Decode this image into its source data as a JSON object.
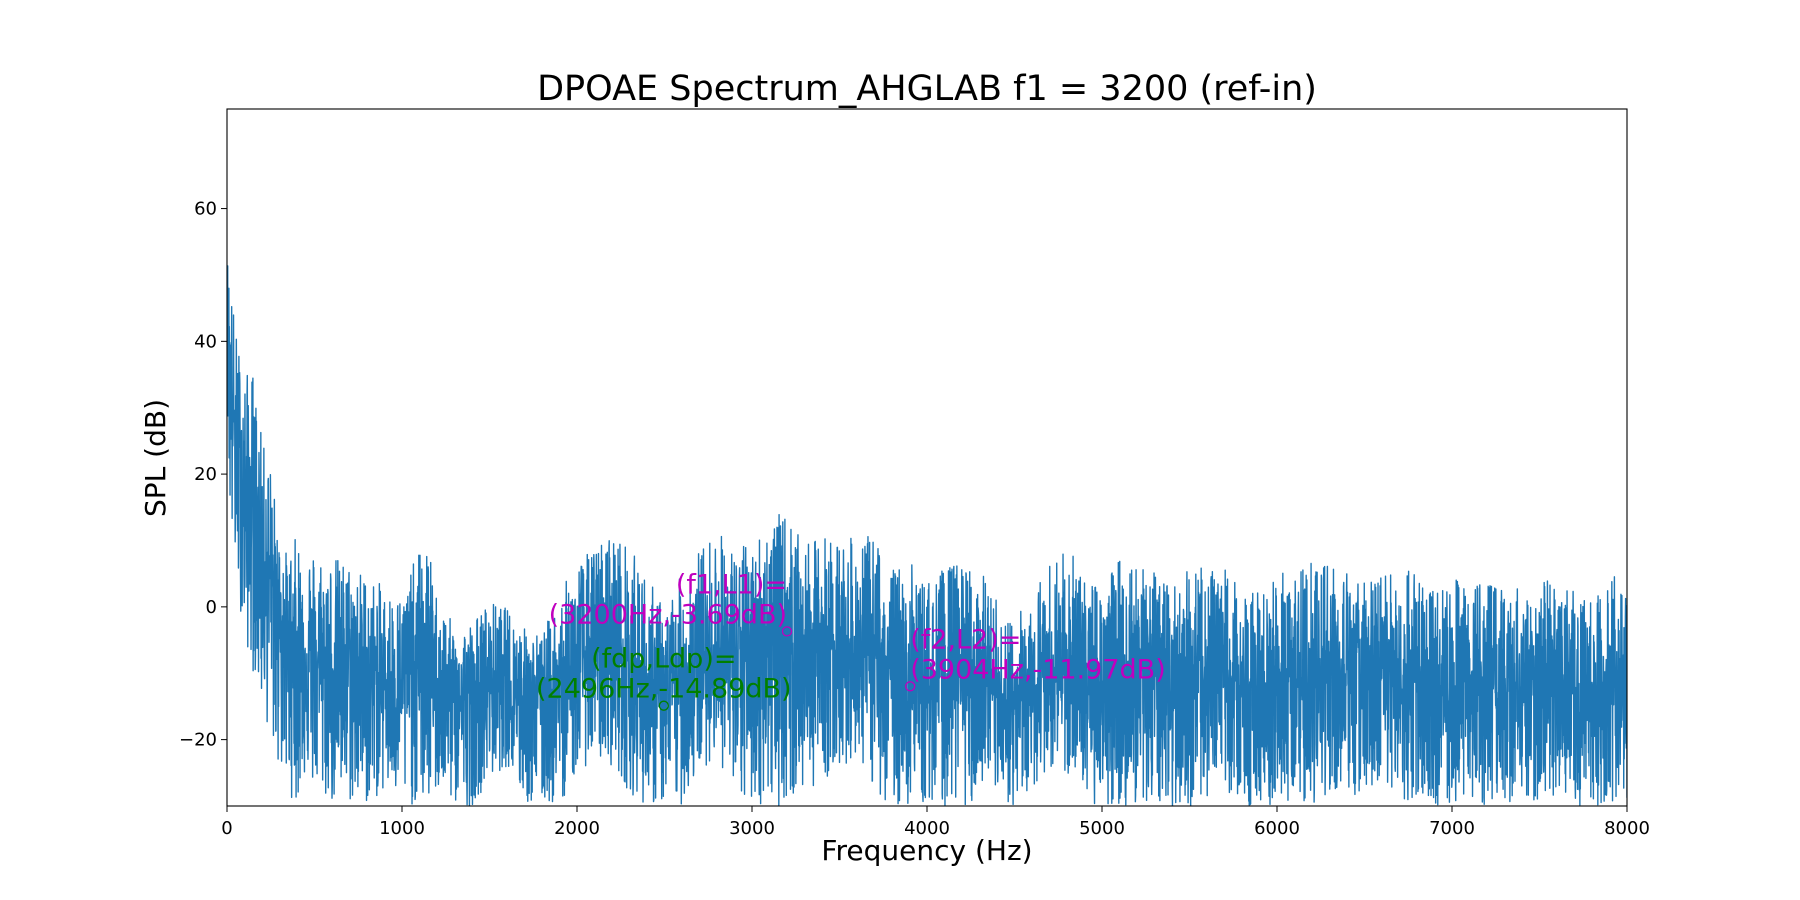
{
  "chart_data": {
    "type": "line",
    "title": "DPOAE Spectrum_AHGLAB f1 = 3200 (ref-in)",
    "xlabel": "Frequency (Hz)",
    "ylabel": "SPL (dB)",
    "xlim": [
      0,
      8000
    ],
    "ylim": [
      -30,
      75
    ],
    "xticks": [
      0,
      1000,
      2000,
      3000,
      4000,
      5000,
      6000,
      7000,
      8000
    ],
    "xtick_labels": [
      "0",
      "1000",
      "2000",
      "3000",
      "4000",
      "5000",
      "6000",
      "7000",
      "8000"
    ],
    "yticks": [
      -20,
      0,
      20,
      40,
      60
    ],
    "ytick_labels": [
      "−20",
      "0",
      "20",
      "40",
      "60"
    ],
    "grid": false,
    "series_color": "#1f77b4",
    "envelope": {
      "x": [
        0,
        20,
        50,
        100,
        150,
        200,
        250,
        300,
        350,
        400,
        450,
        500,
        600,
        700,
        800,
        900,
        1000,
        1100,
        1150,
        1200,
        1300,
        1400,
        1500,
        1600,
        1700,
        1800,
        1900,
        2000,
        2100,
        2200,
        2300,
        2400,
        2500,
        2600,
        2700,
        2800,
        2900,
        3000,
        3100,
        3200,
        3300,
        3400,
        3500,
        3600,
        3700,
        3800,
        3900,
        4000,
        4100,
        4200,
        4300,
        4400,
        4500,
        4600,
        4700,
        4800,
        4900,
        5000,
        5100,
        5200,
        5300,
        5400,
        5500,
        5600,
        5700,
        5800,
        5900,
        6000,
        6100,
        6200,
        6300,
        6400,
        6500,
        6600,
        6700,
        6800,
        6900,
        7000,
        7100,
        7200,
        7300,
        7400,
        7500,
        7600,
        7700,
        7800,
        7900,
        8000
      ],
      "max": [
        54,
        50,
        42,
        35,
        36,
        25,
        22,
        10,
        8,
        11,
        10,
        9,
        8,
        7,
        5,
        3,
        2,
        9,
        9,
        2,
        -3,
        -2,
        1,
        0,
        -3,
        -4,
        2,
        7,
        9,
        12,
        9,
        5,
        0,
        5,
        9,
        12,
        9,
        10,
        14,
        14,
        9,
        11,
        11,
        10,
        11,
        6,
        7,
        4,
        6,
        7,
        6,
        1,
        -2,
        3,
        7,
        9,
        5,
        3,
        8,
        9,
        5,
        3,
        6,
        6,
        6,
        3,
        2,
        6,
        5,
        7,
        9,
        6,
        4,
        5,
        5,
        6,
        3,
        5,
        5,
        4,
        3,
        3,
        5,
        4,
        3,
        2,
        4,
        6
      ],
      "min": [
        30,
        10,
        5,
        -5,
        -10,
        -15,
        -20,
        -25,
        -28,
        -30,
        -25,
        -28,
        -30,
        -30,
        -30,
        -28,
        -30,
        -30,
        -30,
        -28,
        -30,
        -30,
        -26,
        -24,
        -30,
        -30,
        -30,
        -25,
        -23,
        -24,
        -28,
        -30,
        -30,
        -30,
        -25,
        -22,
        -30,
        -30,
        -30,
        -30,
        -28,
        -26,
        -25,
        -22,
        -28,
        -30,
        -30,
        -30,
        -30,
        -30,
        -30,
        -30,
        -30,
        -28,
        -24,
        -26,
        -30,
        -30,
        -30,
        -30,
        -30,
        -30,
        -30,
        -30,
        -28,
        -30,
        -30,
        -30,
        -30,
        -30,
        -30,
        -30,
        -30,
        -30,
        -30,
        -30,
        -30,
        -30,
        -30,
        -30,
        -30,
        -30,
        -30,
        -30,
        -30,
        -30,
        -30,
        -30
      ],
      "typical": [
        45,
        35,
        25,
        18,
        15,
        10,
        5,
        0,
        -4,
        -6,
        -7,
        -8,
        -9,
        -9,
        -10,
        -11,
        -11,
        -8,
        -8,
        -11,
        -14,
        -13,
        -12,
        -12,
        -13,
        -14,
        -12,
        -8,
        -7,
        -6,
        -9,
        -12,
        -14,
        -11,
        -8,
        -6,
        -8,
        -8,
        -5,
        -4,
        -7,
        -6,
        -6,
        -7,
        -7,
        -10,
        -11,
        -12,
        -11,
        -10,
        -11,
        -14,
        -15,
        -12,
        -10,
        -9,
        -11,
        -12,
        -10,
        -9,
        -11,
        -12,
        -11,
        -11,
        -11,
        -12,
        -13,
        -11,
        -12,
        -11,
        -10,
        -11,
        -12,
        -12,
        -12,
        -11,
        -12,
        -12,
        -12,
        -12,
        -13,
        -13,
        -12,
        -12,
        -12,
        -13,
        -12,
        -11
      ]
    },
    "annotations": [
      {
        "line1": "(f1,L1)=",
        "line2": "(3200Hz,-3.69dB)",
        "x": 3200,
        "y": -3.69,
        "color": "#bf00bf",
        "align": "end"
      },
      {
        "line1": "(fdp,Ldp)=",
        "line2": "(2496Hz,-14.89dB)",
        "x": 2496,
        "y": -14.89,
        "color": "#007f00",
        "align": "middle"
      },
      {
        "line1": "(f2,L2)=",
        "line2": "(3904Hz,-11.97dB)",
        "x": 3904,
        "y": -11.97,
        "color": "#bf00bf",
        "align": "start"
      }
    ]
  }
}
